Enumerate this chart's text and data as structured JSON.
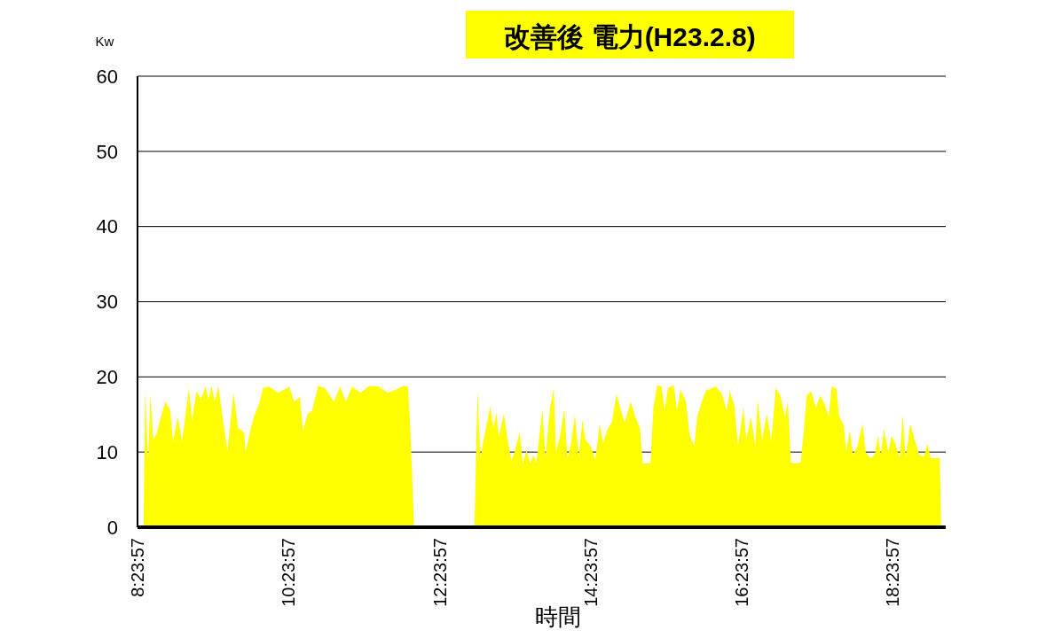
{
  "chart_data": {
    "type": "area",
    "title": "改善後  電力(H23.2.8)",
    "xlabel": "時間",
    "ylabel": "Kw",
    "xlim": [
      8.39917,
      19.1
    ],
    "xticks": [
      {
        "value": 8.39917,
        "label": "8:23:57"
      },
      {
        "value": 10.39917,
        "label": "10:23:57"
      },
      {
        "value": 12.39917,
        "label": "12:23:57"
      },
      {
        "value": 14.39917,
        "label": "14:23:57"
      },
      {
        "value": 16.39917,
        "label": "16:23:57"
      },
      {
        "value": 18.39917,
        "label": "18:23:57"
      }
    ],
    "ylim": [
      0,
      60
    ],
    "yticks": [
      0,
      10,
      20,
      30,
      40,
      50,
      60
    ],
    "grid": "y",
    "series": [
      {
        "color": "#ffff00",
        "x": [
          8.48,
          8.5,
          8.54,
          8.57,
          8.61,
          8.65,
          8.71,
          8.77,
          8.83,
          8.87,
          8.93,
          8.99,
          9.08,
          9.12,
          9.18,
          9.24,
          9.3,
          9.34,
          9.38,
          9.42,
          9.47,
          9.53,
          9.59,
          9.67,
          9.73,
          9.81,
          9.83,
          9.89,
          9.94,
          10.02,
          10.06,
          10.14,
          10.26,
          10.34,
          10.41,
          10.47,
          10.55,
          10.59,
          10.65,
          10.71,
          10.79,
          10.88,
          11.0,
          11.08,
          11.16,
          11.24,
          11.35,
          11.47,
          11.59,
          11.71,
          11.82,
          11.92,
          11.98,
          12.02,
          12.06,
          12.45,
          12.86,
          12.88,
          12.9,
          12.94,
          12.98,
          13.02,
          13.07,
          13.11,
          13.15,
          13.18,
          13.25,
          13.3,
          13.35,
          13.39,
          13.46,
          13.5,
          13.55,
          13.6,
          13.64,
          13.68,
          13.76,
          13.8,
          13.86,
          13.91,
          13.94,
          13.99,
          14.05,
          14.09,
          14.14,
          14.19,
          14.24,
          14.29,
          14.33,
          14.4,
          14.46,
          14.52,
          14.56,
          14.62,
          14.68,
          14.74,
          14.8,
          14.85,
          14.93,
          14.99,
          15.05,
          15.09,
          15.19,
          15.23,
          15.28,
          15.34,
          15.38,
          15.42,
          15.5,
          15.54,
          15.59,
          15.66,
          15.71,
          15.77,
          15.81,
          15.87,
          15.93,
          15.97,
          16.05,
          16.13,
          16.2,
          16.24,
          16.3,
          16.35,
          16.42,
          16.46,
          16.52,
          16.58,
          16.61,
          16.67,
          16.73,
          16.79,
          16.85,
          16.91,
          16.97,
          17.01,
          17.05,
          17.1,
          17.18,
          17.22,
          17.26,
          17.32,
          17.38,
          17.44,
          17.5,
          17.55,
          17.59,
          17.65,
          17.69,
          17.75,
          17.78,
          17.83,
          17.87,
          17.93,
          18.0,
          18.04,
          18.1,
          18.16,
          18.2,
          18.24,
          18.28,
          18.34,
          18.38,
          18.43,
          18.49,
          18.53,
          18.57,
          18.63,
          18.69,
          18.75,
          18.81,
          18.86,
          18.9,
          18.94,
          19.02,
          19.04
        ],
        "values": [
          0,
          18.1,
          8.8,
          17.7,
          11.6,
          12.4,
          14.7,
          16.7,
          15.6,
          11.4,
          14.7,
          11.4,
          18.5,
          14.2,
          18.1,
          17.1,
          18.7,
          17.0,
          18.8,
          16.7,
          18.7,
          14.3,
          10.2,
          17.9,
          13.2,
          12.6,
          10.0,
          12.8,
          14.7,
          16.7,
          18.5,
          18.7,
          17.9,
          18.3,
          18.7,
          16.7,
          17.3,
          12.8,
          15.1,
          15.5,
          18.8,
          18.5,
          16.7,
          18.7,
          16.7,
          18.7,
          17.9,
          18.8,
          18.7,
          17.9,
          18.3,
          18.8,
          18.7,
          10.9,
          0,
          null,
          0,
          9.0,
          18.1,
          9.2,
          11.6,
          13.6,
          16.1,
          13.2,
          15.3,
          12.0,
          15.1,
          11.6,
          8.9,
          10.0,
          12.6,
          8.5,
          10.2,
          8.5,
          9.6,
          8.6,
          15.7,
          9.2,
          15.9,
          18.5,
          10.0,
          12.0,
          15.7,
          9.2,
          11.2,
          14.9,
          9.2,
          14.3,
          11.6,
          10.8,
          9.0,
          13.8,
          11.2,
          13.0,
          14.0,
          17.7,
          15.5,
          14.0,
          16.7,
          14.7,
          13.2,
          8.5,
          8.5,
          15.9,
          18.9,
          18.7,
          15.5,
          18.5,
          18.9,
          15.5,
          18.3,
          16.7,
          12.2,
          10.8,
          14.7,
          16.7,
          18.3,
          18.3,
          18.7,
          17.9,
          15.5,
          18.1,
          16.3,
          10.8,
          15.9,
          11.6,
          14.7,
          10.8,
          16.9,
          11.6,
          15.1,
          11.4,
          18.5,
          17.5,
          14.7,
          16.7,
          8.6,
          8.5,
          8.6,
          12.8,
          17.5,
          18.1,
          15.9,
          17.5,
          16.3,
          14.7,
          18.7,
          18.5,
          14.7,
          13.6,
          10.0,
          12.8,
          9.6,
          10.8,
          13.8,
          10.0,
          9.2,
          9.6,
          12.2,
          9.6,
          13.0,
          10.0,
          12.2,
          11.2,
          9.2,
          14.9,
          9.2,
          13.8,
          11.6,
          9.6,
          9.4,
          11.0,
          9.2,
          9.2,
          9.2,
          0
        ]
      }
    ]
  }
}
